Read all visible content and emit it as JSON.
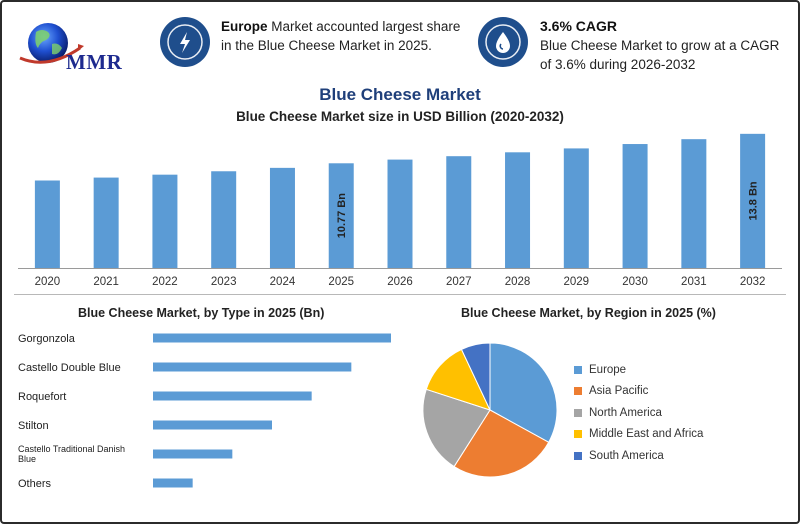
{
  "header": {
    "logo_text": "MMR",
    "highlight1": {
      "bold": "Europe",
      "text_line1": " Market accounted largest share",
      "text_line2": "in the Blue Cheese Market in 2025.",
      "icon": "lightning-icon"
    },
    "highlight2": {
      "title": "3.6% CAGR",
      "text_line1": "Blue Cheese Market to grow at a CAGR",
      "text_line2": "of 3.6% during 2026-2032",
      "icon": "drop-icon"
    }
  },
  "colors": {
    "bar": "#5b9bd5",
    "icon_bg": "#1f4e8c",
    "title": "#1f3f7a"
  },
  "chart_data": [
    {
      "type": "bar",
      "title": "Blue Cheese Market",
      "subtitle": "Blue Cheese Market size in USD Billion (2020-2032)",
      "categories": [
        "2020",
        "2021",
        "2022",
        "2023",
        "2024",
        "2025",
        "2026",
        "2027",
        "2028",
        "2029",
        "2030",
        "2031",
        "2032"
      ],
      "values": [
        9.0,
        9.3,
        9.6,
        9.95,
        10.3,
        10.77,
        11.15,
        11.5,
        11.9,
        12.3,
        12.75,
        13.25,
        13.8
      ],
      "data_labels": {
        "2025": "10.77 Bn",
        "2032": "13.8 Bn"
      },
      "ylim": [
        0,
        14.4
      ],
      "grid": false
    },
    {
      "type": "bar",
      "orientation": "horizontal",
      "title": "Blue Cheese Market, by Type in 2025 (Bn)",
      "categories": [
        "Gorgonzola",
        "Castello Double Blue",
        "Roquefort",
        "Stilton",
        "Castello Traditional Danish Blue",
        "Others"
      ],
      "values": [
        3.0,
        2.5,
        2.0,
        1.5,
        1.0,
        0.5
      ],
      "xlim": [
        0,
        3.0
      ]
    },
    {
      "type": "pie",
      "title": "Blue Cheese Market, by Region in 2025 (%)",
      "labels": [
        "Europe",
        "Asia Pacific",
        "North America",
        "Middle East and Africa",
        "South America"
      ],
      "values": [
        33,
        26,
        21,
        13,
        7
      ],
      "colors": [
        "#5b9bd5",
        "#ed7d31",
        "#a5a5a5",
        "#ffc000",
        "#4472c4"
      ],
      "legend": "right"
    }
  ]
}
